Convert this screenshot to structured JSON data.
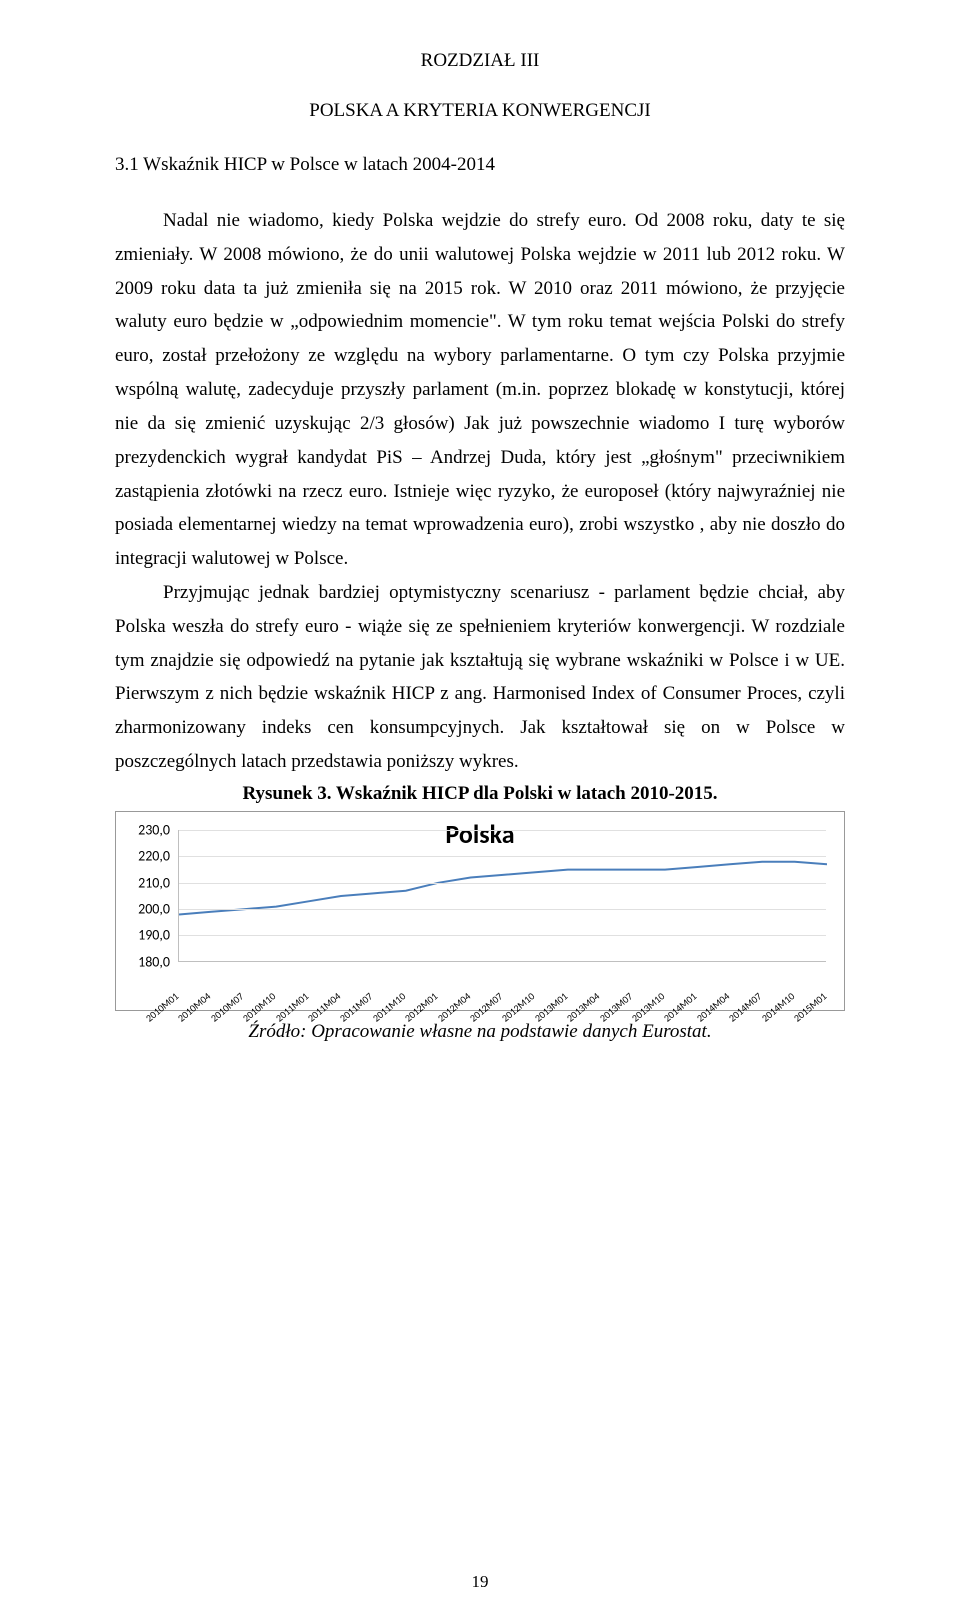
{
  "chapter_label": "ROZDZIAŁ III",
  "chapter_subtitle": "POLSKA A KRYTERIA KONWERGENCJI",
  "section_heading": "3.1 Wskaźnik HICP w Polsce w latach 2004-2014",
  "para1": "Nadal nie wiadomo, kiedy Polska wejdzie do strefy euro. Od 2008 roku, daty te się zmieniały. W 2008 mówiono, że do unii walutowej Polska wejdzie w 2011 lub 2012 roku. W 2009 roku data ta już zmieniła się na 2015 rok. W 2010 oraz 2011 mówiono, że przyjęcie waluty euro będzie w „odpowiednim momencie\". W tym roku temat wejścia Polski do strefy euro, został przełożony ze względu na wybory parlamentarne. O tym czy Polska przyjmie wspólną walutę, zadecyduje przyszły parlament (m.in. poprzez blokadę w konstytucji, której nie da się zmienić uzyskując 2/3 głosów) Jak już powszechnie wiadomo I turę wyborów prezydenckich wygrał kandydat PiS – Andrzej Duda, który jest „głośnym\" przeciwnikiem zastąpienia złotówki na rzecz euro. Istnieje więc ryzyko, że europoseł (który najwyraźniej nie posiada elementarnej wiedzy na temat wprowadzenia euro), zrobi wszystko , aby nie doszło do integracji walutowej w Polsce.",
  "para2": "Przyjmując jednak bardziej optymistyczny scenariusz - parlament będzie chciał, aby Polska weszła do strefy euro - wiąże się ze spełnieniem kryteriów konwergencji. W rozdziale tym znajdzie się odpowiedź na pytanie jak kształtują się wybrane wskaźniki w Polsce i w UE. Pierwszym z nich będzie wskaźnik HICP z ang. Harmonised Index of Consumer Proces, czyli zharmonizowany indeks cen konsumpcyjnych. Jak kształtował się on w Polsce w poszczególnych latach przedstawia poniższy wykres.",
  "figure_title": "Rysunek 3. Wskaźnik HICP dla Polski w latach 2010-2015.",
  "chart": {
    "type": "line",
    "title": "Polska",
    "ylim": [
      180,
      230
    ],
    "ytick_step": 10,
    "yticks": [
      "230,0",
      "220,0",
      "210,0",
      "200,0",
      "190,0",
      "180,0"
    ],
    "x_labels": [
      "2010M01",
      "2010M04",
      "2010M07",
      "2010M10",
      "2011M01",
      "2011M04",
      "2011M07",
      "2011M10",
      "2012M01",
      "2012M04",
      "2012M07",
      "2012M10",
      "2013M01",
      "2013M04",
      "2013M07",
      "2013M10",
      "2014M01",
      "2014M04",
      "2014M07",
      "2014M10",
      "2015M01"
    ],
    "values": [
      198,
      199,
      200,
      201,
      203,
      205,
      206,
      207,
      210,
      212,
      213,
      214,
      215,
      215,
      215,
      215,
      216,
      217,
      218,
      218,
      217
    ],
    "line_color": "#4a7ebb",
    "line_width": 2,
    "background_color": "#ffffff",
    "grid_color": "#e0e0e0",
    "axis_fontsize": 14,
    "title_fontsize": 26,
    "font_family": "Calibri"
  },
  "source_line": "Źródło: Opracowanie własne na podstawie danych Eurostat.",
  "page_number": "19"
}
